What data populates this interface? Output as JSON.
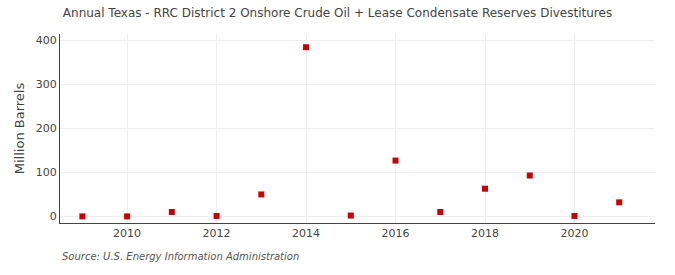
{
  "chart_data": {
    "type": "scatter",
    "title": "Annual Texas - RRC District 2 Onshore Crude Oil + Lease Condensate Reserves Divestitures",
    "y_label": "Million Barrels",
    "annotations": [
      "Source: U.S. Energy Information Administration"
    ],
    "x": [
      2009,
      2010,
      2011,
      2012,
      2013,
      2014,
      2015,
      2016,
      2017,
      2018,
      2019,
      2020,
      2021
    ],
    "values": [
      0,
      0,
      10,
      1,
      50,
      385,
      2,
      127,
      10,
      63,
      93,
      1,
      32
    ],
    "color": "#cc0000",
    "marker": "square",
    "xlim": [
      2008.5,
      2021.8
    ],
    "xticks": [
      2010,
      2012,
      2014,
      2016,
      2018,
      2020
    ],
    "ylim": [
      -15,
      415
    ],
    "yticks": [
      0,
      100,
      200,
      300,
      400
    ],
    "grid": true
  }
}
